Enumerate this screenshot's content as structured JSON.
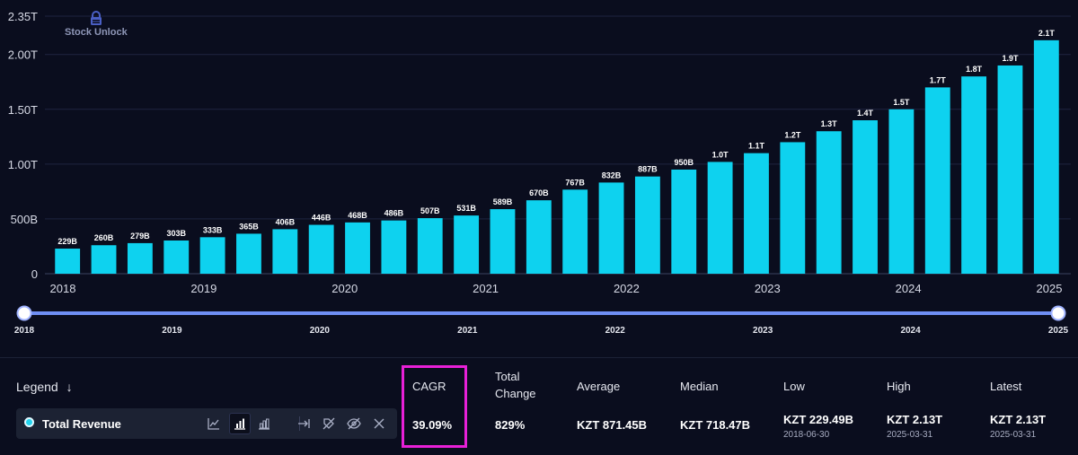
{
  "watermark": "Stock Unlock",
  "chart_data": {
    "type": "bar",
    "series": [
      {
        "name": "Total Revenue",
        "color": "#0ed2ef",
        "values": [
          229,
          260,
          279,
          303,
          333,
          365,
          406,
          446,
          468,
          486,
          507,
          531,
          589,
          670,
          767,
          832,
          887,
          950,
          1020,
          1100,
          1200,
          1300,
          1400,
          1500,
          1700,
          1800,
          1900,
          2130
        ],
        "labels": [
          "229B",
          "260B",
          "279B",
          "303B",
          "333B",
          "365B",
          "406B",
          "446B",
          "468B",
          "486B",
          "507B",
          "531B",
          "589B",
          "670B",
          "767B",
          "832B",
          "887B",
          "950B",
          "1.0T",
          "1.1T",
          "1.2T",
          "1.3T",
          "1.4T",
          "1.5T",
          "1.7T",
          "1.8T",
          "1.9T",
          "2.1T"
        ]
      }
    ],
    "unit": "billions KZT",
    "ylim": [
      0,
      2350
    ],
    "yticks": [
      {
        "value": 0,
        "label": "0"
      },
      {
        "value": 500,
        "label": "500B"
      },
      {
        "value": 1000,
        "label": "1.00T"
      },
      {
        "value": 1500,
        "label": "1.50T"
      },
      {
        "value": 2000,
        "label": "2.00T"
      },
      {
        "value": 2350,
        "label": "2.35T"
      }
    ],
    "x_range": [
      2018.0,
      2025.0
    ],
    "x_year_ticks": [
      "2018",
      "2019",
      "2020",
      "2021",
      "2022",
      "2023",
      "2024",
      "2025"
    ],
    "grid": true
  },
  "range_slider": {
    "start_label": "2018",
    "end_label": "2025",
    "ticks": [
      "2019",
      "2020",
      "2021",
      "2022",
      "2023",
      "2024"
    ]
  },
  "legend": {
    "title": "Legend",
    "title_icon": "arrow-down-icon",
    "item": {
      "name": "Total Revenue",
      "color": "#22d3ee",
      "tools": [
        "line-chart-icon",
        "bar-chart-icon",
        "stacked-bar-icon",
        "arrow-right-bar-icon",
        "tag-off-icon",
        "eye-off-icon",
        "close-icon"
      ]
    }
  },
  "stats": {
    "cagr": {
      "label": "CAGR",
      "value": "39.09%"
    },
    "total_change": {
      "label": "Total Change",
      "value": "829%"
    },
    "average": {
      "label": "Average",
      "value": "KZT 871.45B"
    },
    "median": {
      "label": "Median",
      "value": "KZT 718.47B"
    },
    "low": {
      "label": "Low",
      "value": "KZT 229.49B",
      "date": "2018-06-30"
    },
    "high": {
      "label": "High",
      "value": "KZT 2.13T",
      "date": "2025-03-31"
    },
    "latest": {
      "label": "Latest",
      "value": "KZT 2.13T",
      "date": "2025-03-31"
    }
  },
  "highlight_color": "#e820d8"
}
